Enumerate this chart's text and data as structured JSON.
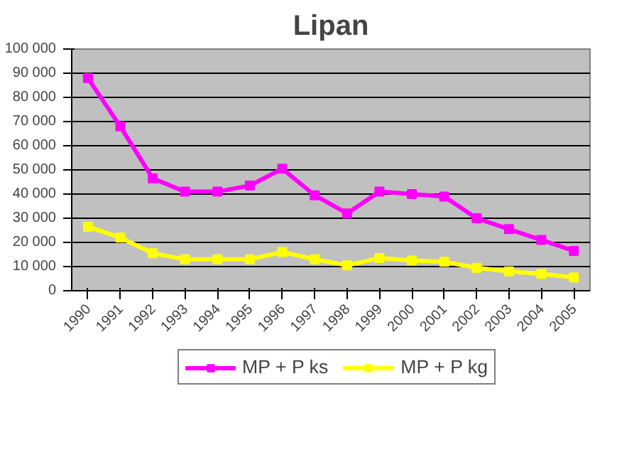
{
  "chart_data": {
    "type": "line",
    "title": "Lipan",
    "categories": [
      "1990",
      "1991",
      "1992",
      "1993",
      "1994",
      "1995",
      "1996",
      "1997",
      "1998",
      "1999",
      "2000",
      "2001",
      "2002",
      "2003",
      "2004",
      "2005"
    ],
    "series": [
      {
        "name": "MP + P ks",
        "color": "#ff00ff",
        "values": [
          88000,
          68000,
          46500,
          41000,
          41000,
          43500,
          50500,
          39500,
          32000,
          41000,
          40000,
          39000,
          30000,
          25500,
          21000,
          16500
        ]
      },
      {
        "name": "MP + P kg",
        "color": "#ffff00",
        "values": [
          26500,
          22000,
          15500,
          13000,
          13000,
          13000,
          16000,
          13000,
          10500,
          13500,
          12500,
          12000,
          9500,
          8000,
          7000,
          5500
        ]
      }
    ],
    "ylim": [
      0,
      100000
    ],
    "yticks": [
      {
        "value": 0,
        "label": "0"
      },
      {
        "value": 10000,
        "label": "10 000"
      },
      {
        "value": 20000,
        "label": "20 000"
      },
      {
        "value": 30000,
        "label": "30 000"
      },
      {
        "value": 40000,
        "label": "40 000"
      },
      {
        "value": 50000,
        "label": "50 000"
      },
      {
        "value": 60000,
        "label": "60 000"
      },
      {
        "value": 70000,
        "label": "70 000"
      },
      {
        "value": 80000,
        "label": "80 000"
      },
      {
        "value": 90000,
        "label": "90 000"
      },
      {
        "value": 100000,
        "label": "100 000"
      }
    ],
    "grid": "y",
    "legend": "bottom",
    "marker": "square",
    "line_style": "solid"
  }
}
